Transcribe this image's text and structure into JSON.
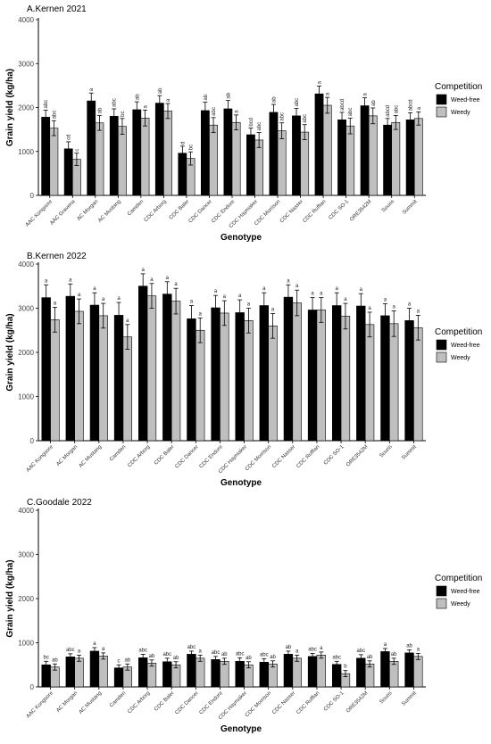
{
  "chart_data": [
    {
      "type": "bar",
      "title": "A.Kernen 2021",
      "xlabel": "Genotype",
      "ylabel": "Grain yield (kg/ha)",
      "ylim": [
        0,
        4000
      ],
      "yticks": [
        0,
        1000,
        2000,
        3000,
        4000
      ],
      "grid": false,
      "legend": "right",
      "categories": [
        "AAC Kongsore",
        "AAC Gravena",
        "AC Morgan",
        "AC Mustang",
        "Camden",
        "CDC Arborg",
        "CDC Baler",
        "CDC Dancer",
        "CDC Endure",
        "CDC Haymaker",
        "CDC Morrison",
        "CDC Nasser",
        "CDC Ruffian",
        "CDC SO-1",
        "ORE3542M",
        "Souris",
        "Summit"
      ],
      "series": [
        {
          "name": "Weed-free",
          "color": "#000000",
          "values": [
            1780,
            1060,
            2150,
            1800,
            1950,
            2100,
            960,
            1930,
            1970,
            1380,
            1890,
            1810,
            2310,
            1720,
            2040,
            1600,
            1720
          ],
          "errors": [
            160,
            160,
            180,
            170,
            180,
            170,
            160,
            190,
            190,
            150,
            180,
            170,
            180,
            170,
            180,
            150,
            160
          ],
          "letters": [
            "abc",
            "cd",
            "a",
            "abc",
            "ab",
            "ab",
            "d",
            "ab",
            "ab",
            "bcd",
            "ab",
            "abc",
            "a",
            "abcd",
            "a",
            "abcd",
            "abcd"
          ]
        },
        {
          "name": "Weedy",
          "color": "#bfbfbf",
          "values": [
            1530,
            820,
            1650,
            1570,
            1760,
            1920,
            840,
            1600,
            1660,
            1260,
            1470,
            1440,
            2050,
            1580,
            1810,
            1660,
            1750
          ],
          "errors": [
            170,
            140,
            170,
            180,
            180,
            170,
            150,
            170,
            170,
            170,
            180,
            170,
            180,
            180,
            180,
            160,
            150
          ],
          "letters": [
            "abc",
            "c",
            "ab",
            "bc",
            "a",
            "a",
            "bc",
            "abc",
            "a",
            "abc",
            "abc",
            "abc",
            "a",
            "abc",
            "ab",
            "abc",
            "a"
          ]
        }
      ]
    },
    {
      "type": "bar",
      "title": "B.Kernen 2022",
      "xlabel": "Genotype",
      "ylabel": "Grain yield (kg/ha)",
      "ylim": [
        0,
        4000
      ],
      "yticks": [
        0,
        1000,
        2000,
        3000,
        4000
      ],
      "grid": false,
      "legend": "right",
      "categories": [
        "AAC Kongsore",
        "AC Morgan",
        "AC Mustang",
        "Camden",
        "CDC Arborg",
        "CDC Baler",
        "CDC Dancer",
        "CDC Endure",
        "CDC Haymaker",
        "CDC Morrison",
        "CDC Nasser",
        "CDC Ruffian",
        "CDC SO-1",
        "ORE3542M",
        "Souris",
        "Summit"
      ],
      "series": [
        {
          "name": "Weed-free",
          "color": "#000000",
          "values": [
            3240,
            3270,
            3070,
            2840,
            3500,
            3320,
            2760,
            3010,
            2900,
            3060,
            3250,
            2960,
            3060,
            3050,
            2830,
            2720
          ],
          "errors": [
            290,
            280,
            280,
            290,
            280,
            280,
            300,
            280,
            290,
            290,
            280,
            280,
            290,
            280,
            270,
            280
          ],
          "letters": [
            "a",
            "a",
            "a",
            "a",
            "a",
            "a",
            "a",
            "a",
            "a",
            "a",
            "a",
            "a",
            "a",
            "a",
            "a",
            "a"
          ]
        },
        {
          "name": "Weedy",
          "color": "#bfbfbf",
          "values": [
            2740,
            2930,
            2830,
            2350,
            3280,
            3160,
            2500,
            2890,
            2720,
            2600,
            3120,
            2960,
            2820,
            2630,
            2650,
            2560
          ],
          "errors": [
            280,
            280,
            280,
            280,
            280,
            290,
            280,
            280,
            280,
            280,
            290,
            280,
            290,
            280,
            290,
            280
          ],
          "letters": [
            "a",
            "a",
            "a",
            "a",
            "a",
            "a",
            "a",
            "a",
            "a",
            "a",
            "a",
            "a",
            "a",
            "a",
            "a",
            "a"
          ]
        }
      ]
    },
    {
      "type": "bar",
      "title": "C.Goodale 2022",
      "xlabel": "Genotype",
      "ylabel": "Grain yield (kg/ha)",
      "ylim": [
        0,
        4000
      ],
      "yticks": [
        0,
        1000,
        2000,
        3000,
        4000
      ],
      "grid": false,
      "legend": "right",
      "categories": [
        "AAC Kongsore",
        "AC Morgan",
        "AC Mustang",
        "Camden",
        "CDC Arborg",
        "CDC Baler",
        "CDC Dancer",
        "CDC Endure",
        "CDC Haymaker",
        "CDC Morrison",
        "CDC Nasser",
        "CDC Ruffian",
        "CDC SO-1",
        "ORE3542M",
        "Souris",
        "Summit"
      ],
      "series": [
        {
          "name": "Weed-free",
          "color": "#000000",
          "values": [
            500,
            680,
            810,
            430,
            660,
            570,
            740,
            620,
            580,
            560,
            740,
            690,
            510,
            650,
            800,
            770
          ],
          "errors": [
            80,
            70,
            80,
            70,
            80,
            80,
            70,
            70,
            80,
            80,
            70,
            70,
            70,
            80,
            70,
            70
          ],
          "letters": [
            "bc",
            "abc",
            "a",
            "c",
            "abc",
            "abc",
            "abc",
            "abc",
            "abc",
            "abc",
            "ab",
            "abc",
            "abc",
            "abc",
            "a",
            "ab"
          ]
        },
        {
          "name": "Weedy",
          "color": "#bfbfbf",
          "values": [
            450,
            650,
            700,
            450,
            540,
            500,
            650,
            580,
            500,
            520,
            650,
            720,
            300,
            520,
            580,
            690
          ],
          "errors": [
            70,
            70,
            70,
            70,
            70,
            70,
            70,
            70,
            70,
            70,
            70,
            70,
            70,
            70,
            70,
            70
          ],
          "letters": [
            "ab",
            "a",
            "a",
            "ab",
            "ab",
            "ab",
            "a",
            "ab",
            "ab",
            "ab",
            "a",
            "a",
            "b",
            "ab",
            "ab",
            "a"
          ]
        }
      ]
    }
  ],
  "legend": {
    "title": "Competition",
    "items": [
      "Weed-free",
      "Weedy"
    ]
  }
}
